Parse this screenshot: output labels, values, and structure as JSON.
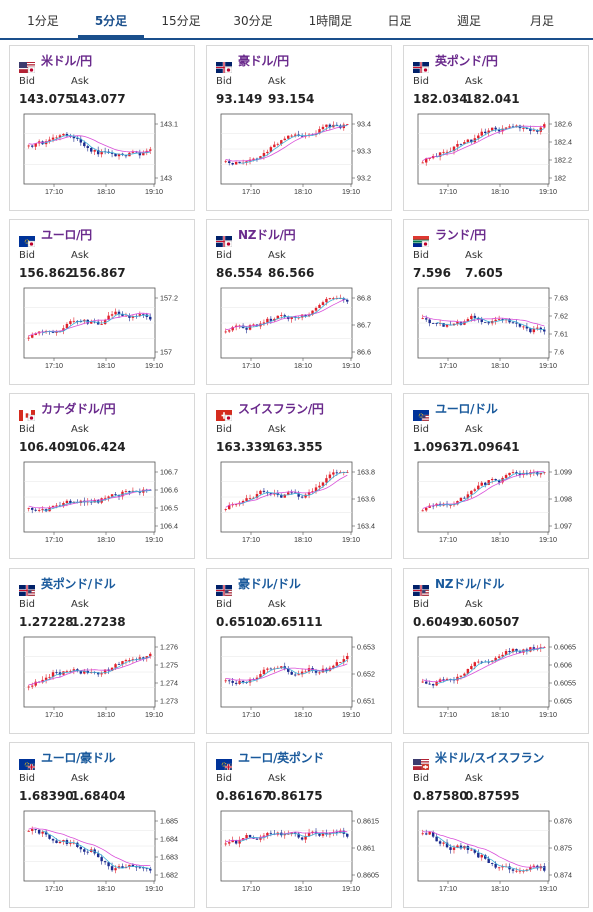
{
  "tabs": [
    {
      "label": "1分足",
      "active": false
    },
    {
      "label": "5分足",
      "active": true
    },
    {
      "label": "15分足",
      "active": false
    },
    {
      "label": "30分足",
      "active": false
    },
    {
      "label": "1時間足",
      "active": false
    },
    {
      "label": "日足",
      "active": false
    },
    {
      "label": "週足",
      "active": false
    },
    {
      "label": "月足",
      "active": false
    }
  ],
  "bid_label": "Bid",
  "ask_label": "Ask",
  "colors": {
    "up": "#e0202b",
    "down": "#1c2b8f",
    "ma_long": "#d94fd9",
    "ma_short": "#3fb0d8",
    "pair_jpy": "#6a2a8c",
    "pair_usd": "#1a5a9c"
  },
  "cards": [
    {
      "pair": "米ドル/円",
      "flag": "us-jp",
      "bid": "143.075",
      "ask": "143.077",
      "ticks": [
        "143.1",
        "143"
      ],
      "xlabels": [
        "17:10",
        "18:10",
        "19:10"
      ],
      "seed": 1,
      "trend": 0
    },
    {
      "pair": "豪ドル/円",
      "flag": "au-jp",
      "bid": "93.149",
      "ask": "93.154",
      "ticks": [
        "93.4",
        "93.3",
        "93.2"
      ],
      "xlabels": [
        "17:10",
        "18:10",
        "19:10"
      ],
      "seed": 2,
      "trend": -1
    },
    {
      "pair": "英ポンド/円",
      "flag": "gb-jp",
      "bid": "182.034",
      "ask": "182.041",
      "ticks": [
        "182.6",
        "182.4",
        "182.2",
        "182"
      ],
      "xlabels": [
        "17:10",
        "18:10",
        "19:10"
      ],
      "seed": 3,
      "trend": -1
    },
    {
      "pair": "ユーロ/円",
      "flag": "eu-jp",
      "bid": "156.862",
      "ask": "156.867",
      "ticks": [
        "157.2",
        "157"
      ],
      "xlabels": [
        "17:10",
        "18:10",
        "19:10"
      ],
      "seed": 4,
      "trend": -1
    },
    {
      "pair": "NZドル/円",
      "flag": "nz-jp",
      "bid": "86.554",
      "ask": "86.566",
      "ticks": [
        "86.8",
        "86.7",
        "86.6"
      ],
      "xlabels": [
        "17:10",
        "18:10",
        "19:10"
      ],
      "seed": 5,
      "trend": -1
    },
    {
      "pair": "ランド/円",
      "flag": "za-jp",
      "bid": "7.596",
      "ask": "7.605",
      "ticks": [
        "7.63",
        "7.62",
        "7.61",
        "7.6"
      ],
      "xlabels": [
        "17:10",
        "18:10",
        "19:10"
      ],
      "seed": 6,
      "trend": 0
    },
    {
      "pair": "カナダドル/円",
      "flag": "ca-jp",
      "bid": "106.409",
      "ask": "106.424",
      "ticks": [
        "106.7",
        "106.6",
        "106.5",
        "106.4"
      ],
      "xlabels": [
        "17:10",
        "18:10",
        "19:10"
      ],
      "seed": 7,
      "trend": -1
    },
    {
      "pair": "スイスフラン/円",
      "flag": "ch-jp",
      "bid": "163.339",
      "ask": "163.355",
      "ticks": [
        "163.8",
        "163.6",
        "163.4"
      ],
      "xlabels": [
        "17:10",
        "18:10",
        "19:10"
      ],
      "seed": 8,
      "trend": -1
    },
    {
      "pair": "ユーロ/ドル",
      "flag": "eu-us",
      "bid": "1.09637",
      "ask": "1.09641",
      "ticks": [
        "1.099",
        "1.098",
        "1.097"
      ],
      "xlabels": [
        "17:10",
        "18:10",
        "19:10"
      ],
      "seed": 9,
      "trend": -1
    },
    {
      "pair": "英ポンド/ドル",
      "flag": "gb-us",
      "bid": "1.27228",
      "ask": "1.27238",
      "ticks": [
        "1.276",
        "1.275",
        "1.274",
        "1.273"
      ],
      "xlabels": [
        "17:10",
        "18:10",
        "19:10"
      ],
      "seed": 10,
      "trend": -1
    },
    {
      "pair": "豪ドル/ドル",
      "flag": "au-us",
      "bid": "0.65102",
      "ask": "0.65111",
      "ticks": [
        "0.653",
        "0.652",
        "0.651"
      ],
      "xlabels": [
        "17:10",
        "18:10",
        "19:10"
      ],
      "seed": 11,
      "trend": -1
    },
    {
      "pair": "NZドル/ドル",
      "flag": "nz-us",
      "bid": "0.60493",
      "ask": "0.60507",
      "ticks": [
        "0.6065",
        "0.606",
        "0.6055",
        "0.605"
      ],
      "xlabels": [
        "17:10",
        "18:10",
        "19:10"
      ],
      "seed": 12,
      "trend": -1
    },
    {
      "pair": "ユーロ/豪ドル",
      "flag": "eu-au",
      "bid": "1.68390",
      "ask": "1.68404",
      "ticks": [
        "1.685",
        "1.684",
        "1.683",
        "1.682"
      ],
      "xlabels": [
        "17:10",
        "18:10",
        "19:10"
      ],
      "seed": 13,
      "trend": 1
    },
    {
      "pair": "ユーロ/英ポンド",
      "flag": "eu-gb",
      "bid": "0.86167",
      "ask": "0.86175",
      "ticks": [
        "0.8615",
        "0.861",
        "0.8605"
      ],
      "xlabels": [
        "17:10",
        "18:10",
        "19:10"
      ],
      "seed": 14,
      "trend": 0
    },
    {
      "pair": "米ドル/スイスフラン",
      "flag": "us-ch",
      "bid": "0.87580",
      "ask": "0.87595",
      "ticks": [
        "0.876",
        "0.875",
        "0.874"
      ],
      "xlabels": [
        "17:10",
        "18:10",
        "19:10"
      ],
      "seed": 15,
      "trend": 1
    }
  ]
}
